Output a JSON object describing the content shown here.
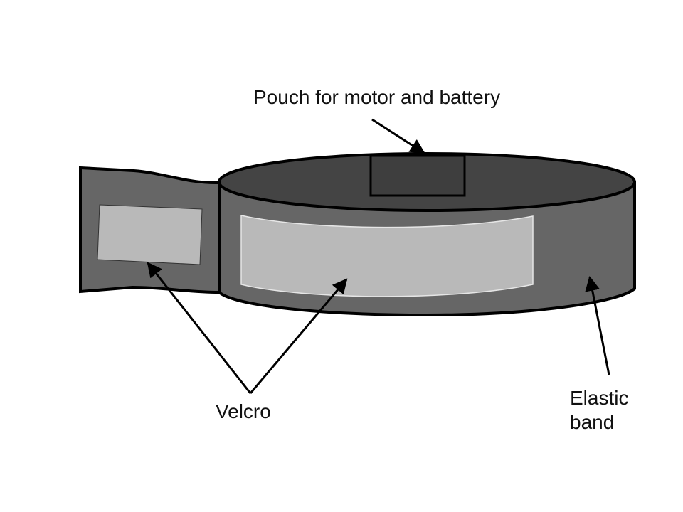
{
  "diagram": {
    "labels": {
      "pouch": "Pouch for motor and battery",
      "velcro": "Velcro",
      "elastic_line1": "Elastic",
      "elastic_line2": "band"
    },
    "colors": {
      "band_side": "#666666",
      "band_top": "#444444",
      "pouch": "#3e3e3e",
      "velcro_patch": "#b9b9b9",
      "outline": "#000000",
      "text": "#111111"
    }
  }
}
